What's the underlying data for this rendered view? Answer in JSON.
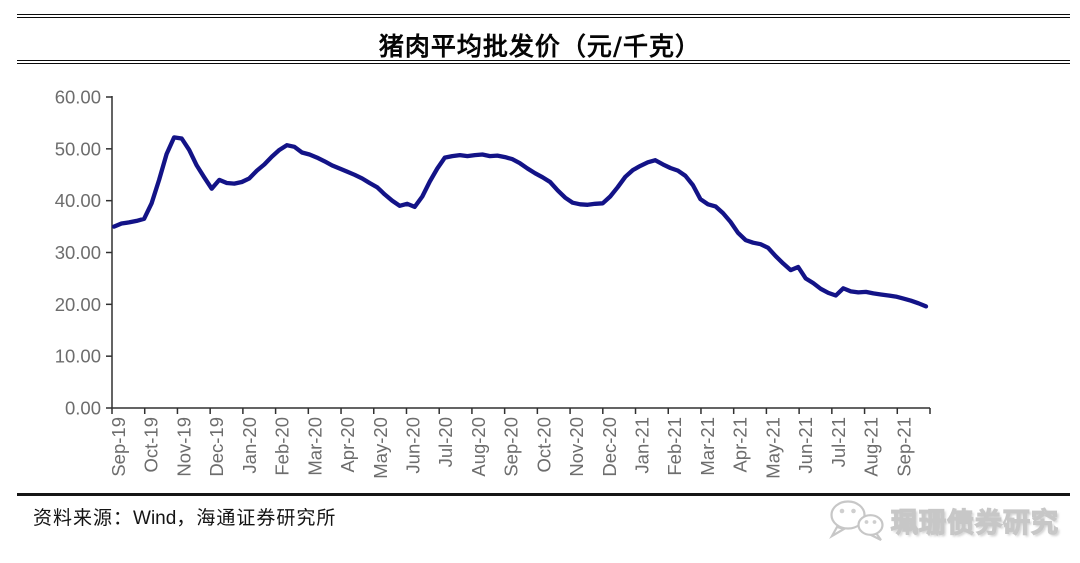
{
  "page": {
    "title": "猪肉平均批发价（元/千克）",
    "source_note": {
      "prefix": "资料来源：",
      "source": "Wind",
      "suffix": "，海通证券研究所"
    },
    "watermark": {
      "icon": "wechat-icon",
      "text": "珮珊债券研究"
    }
  },
  "chart_data": {
    "type": "line",
    "title": "猪肉平均批发价（元/千克）",
    "xlabel": "",
    "ylabel": "",
    "ylim": [
      0,
      60
    ],
    "yticks": [
      0,
      10,
      20,
      30,
      40,
      50,
      60
    ],
    "ytick_labels": [
      "0.00",
      "10.00",
      "20.00",
      "30.00",
      "40.00",
      "50.00",
      "60.00"
    ],
    "grid": false,
    "legend": false,
    "x_frequency": "weekly",
    "categories": [
      "Sep-19",
      "Oct-19",
      "Nov-19",
      "Dec-19",
      "Jan-20",
      "Feb-20",
      "Mar-20",
      "Apr-20",
      "May-20",
      "Jun-20",
      "Jul-20",
      "Aug-20",
      "Sep-20",
      "Oct-20",
      "Nov-20",
      "Dec-20",
      "Jan-21",
      "Feb-21",
      "Mar-21",
      "Apr-21",
      "May-21",
      "Jun-21",
      "Jul-21",
      "Aug-21",
      "Sep-21"
    ],
    "series": [
      {
        "name": "猪肉平均批发价",
        "color": "#131387",
        "values": [
          35.0,
          35.6,
          35.8,
          36.1,
          36.5,
          39.5,
          44.0,
          49.0,
          52.2,
          52.0,
          49.8,
          46.8,
          44.5,
          42.3,
          44.0,
          43.4,
          43.3,
          43.6,
          44.3,
          45.8,
          47.0,
          48.5,
          49.8,
          50.7,
          50.4,
          49.3,
          48.9,
          48.3,
          47.6,
          46.8,
          46.2,
          45.6,
          45.0,
          44.3,
          43.4,
          42.6,
          41.2,
          40.0,
          39.0,
          39.4,
          38.8,
          40.8,
          43.7,
          46.2,
          48.3,
          48.6,
          48.8,
          48.6,
          48.8,
          48.9,
          48.6,
          48.7,
          48.4,
          48.0,
          47.2,
          46.2,
          45.3,
          44.5,
          43.6,
          42.0,
          40.6,
          39.6,
          39.3,
          39.2,
          39.4,
          39.5,
          40.8,
          42.6,
          44.6,
          45.9,
          46.7,
          47.4,
          47.8,
          47.0,
          46.3,
          45.8,
          44.8,
          43.0,
          40.3,
          39.3,
          38.9,
          37.6,
          35.9,
          33.8,
          32.4,
          31.9,
          31.6,
          30.9,
          29.3,
          27.9,
          26.6,
          27.2,
          25.0,
          24.1,
          23.0,
          22.2,
          21.7,
          23.1,
          22.5,
          22.3,
          22.4,
          22.1,
          21.9,
          21.7,
          21.5,
          21.1,
          20.7,
          20.2,
          19.6
        ]
      }
    ],
    "axis_color": "#303030",
    "tick_label_color": "#6d6d6d"
  }
}
